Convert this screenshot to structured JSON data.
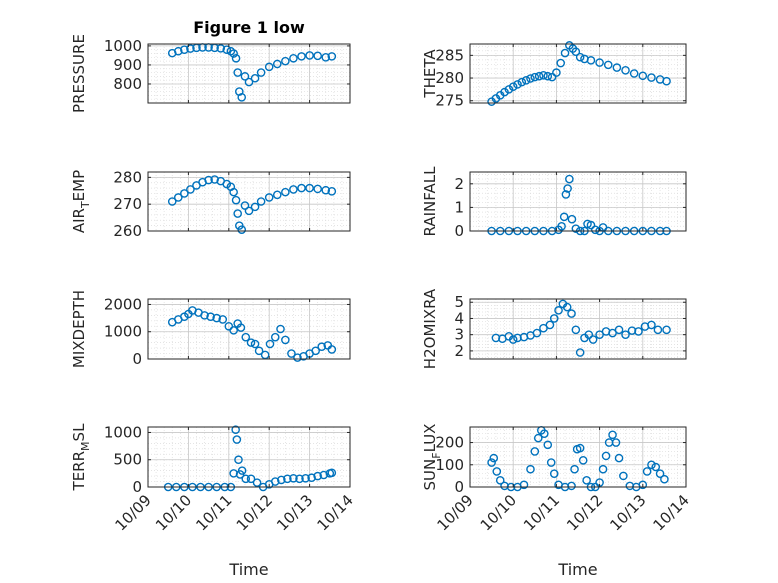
{
  "figure": {
    "title": "Figure 1 low",
    "xlabel": "Time"
  },
  "style": {
    "marker_color": "#0072BD",
    "axis_color": "#262626",
    "grid_color": "#dcdcdc"
  },
  "chart_data": [
    {
      "type": "scatter",
      "ylabel": "PRESSURE",
      "title": "Figure 1 low",
      "xlim": [
        0,
        5
      ],
      "ylim": [
        700,
        1010
      ],
      "yticks": [
        800,
        900,
        1000
      ],
      "xticklabels": [
        "10/09",
        "10/10",
        "10/11",
        "10/12",
        "10/13",
        "10/14"
      ],
      "grid": true,
      "x": [
        0.6,
        0.75,
        0.9,
        1.05,
        1.2,
        1.35,
        1.5,
        1.65,
        1.8,
        1.95,
        2.05,
        2.12,
        2.18,
        2.22,
        2.26,
        2.32,
        2.4,
        2.5,
        2.65,
        2.8,
        3.0,
        3.2,
        3.4,
        3.6,
        3.8,
        4.0,
        4.2,
        4.4,
        4.55
      ],
      "y": [
        962,
        972,
        980,
        986,
        990,
        992,
        992,
        990,
        987,
        980,
        972,
        960,
        935,
        860,
        760,
        730,
        840,
        810,
        830,
        860,
        890,
        905,
        920,
        935,
        945,
        950,
        948,
        940,
        945
      ]
    },
    {
      "type": "scatter",
      "ylabel": "THETA",
      "xlim": [
        0,
        5
      ],
      "ylim": [
        274.5,
        287.5
      ],
      "yticks": [
        275,
        280,
        285
      ],
      "xticklabels": [
        "10/09",
        "10/10",
        "10/11",
        "10/12",
        "10/13",
        "10/14"
      ],
      "grid": true,
      "x": [
        0.5,
        0.6,
        0.7,
        0.8,
        0.9,
        1.0,
        1.1,
        1.2,
        1.3,
        1.4,
        1.5,
        1.6,
        1.7,
        1.8,
        1.9,
        2.0,
        2.1,
        2.2,
        2.3,
        2.38,
        2.45,
        2.55,
        2.65,
        2.8,
        3.0,
        3.2,
        3.4,
        3.6,
        3.8,
        4.0,
        4.2,
        4.4,
        4.55
      ],
      "y": [
        274.8,
        275.5,
        276.2,
        276.9,
        277.5,
        278.1,
        278.6,
        279.1,
        279.5,
        279.9,
        280.2,
        280.4,
        280.6,
        280.4,
        280.2,
        281.2,
        283.3,
        285.5,
        287.2,
        286.5,
        285.8,
        284.6,
        284.2,
        283.9,
        283.4,
        282.9,
        282.3,
        281.7,
        281.0,
        280.5,
        280.1,
        279.7,
        279.3
      ]
    },
    {
      "type": "scatter",
      "ylabel": "AIR_TEMP",
      "xlim": [
        0,
        5
      ],
      "ylim": [
        260,
        282
      ],
      "yticks": [
        260,
        270,
        280
      ],
      "xticklabels": [
        "10/09",
        "10/10",
        "10/11",
        "10/12",
        "10/13",
        "10/14"
      ],
      "grid": true,
      "x": [
        0.6,
        0.75,
        0.9,
        1.05,
        1.2,
        1.35,
        1.5,
        1.65,
        1.8,
        1.95,
        2.05,
        2.12,
        2.18,
        2.22,
        2.26,
        2.32,
        2.4,
        2.5,
        2.65,
        2.8,
        3.0,
        3.2,
        3.4,
        3.6,
        3.8,
        4.0,
        4.2,
        4.4,
        4.55
      ],
      "y": [
        271,
        272.5,
        274,
        275.5,
        277,
        278.2,
        279,
        279.2,
        278.6,
        277.5,
        276.5,
        274.5,
        271.5,
        266.5,
        262,
        260.5,
        269.5,
        267.5,
        269,
        271,
        272.5,
        273.5,
        274.5,
        275.5,
        276,
        276,
        275.7,
        275.2,
        274.8
      ]
    },
    {
      "type": "scatter",
      "ylabel": "RAINFALL",
      "xlim": [
        0,
        5
      ],
      "ylim": [
        0,
        2.5
      ],
      "yticks": [
        0,
        1,
        2
      ],
      "xticklabels": [
        "10/09",
        "10/10",
        "10/11",
        "10/12",
        "10/13",
        "10/14"
      ],
      "grid": true,
      "x": [
        0.5,
        0.7,
        0.9,
        1.1,
        1.3,
        1.5,
        1.7,
        1.9,
        2.05,
        2.12,
        2.18,
        2.22,
        2.26,
        2.3,
        2.36,
        2.45,
        2.55,
        2.65,
        2.72,
        2.8,
        2.9,
        3.0,
        3.08,
        3.2,
        3.4,
        3.6,
        3.8,
        4.0,
        4.2,
        4.4,
        4.55
      ],
      "y": [
        0,
        0,
        0,
        0,
        0,
        0,
        0,
        0,
        0.05,
        0.2,
        0.6,
        1.55,
        1.8,
        2.2,
        0.5,
        0.1,
        0,
        0,
        0.3,
        0.25,
        0.05,
        0,
        0.15,
        0,
        0,
        0,
        0,
        0,
        0,
        0,
        0
      ]
    },
    {
      "type": "scatter",
      "ylabel": "MIXDEPTH",
      "xlim": [
        0,
        5
      ],
      "ylim": [
        0,
        2200
      ],
      "yticks": [
        0,
        1000,
        2000
      ],
      "xticklabels": [
        "10/09",
        "10/10",
        "10/11",
        "10/12",
        "10/13",
        "10/14"
      ],
      "grid": true,
      "x": [
        0.6,
        0.75,
        0.9,
        1.0,
        1.1,
        1.25,
        1.4,
        1.55,
        1.7,
        1.85,
        2.0,
        2.12,
        2.22,
        2.3,
        2.42,
        2.55,
        2.65,
        2.75,
        2.9,
        3.02,
        3.15,
        3.28,
        3.4,
        3.55,
        3.7,
        3.85,
        4.0,
        4.15,
        4.3,
        4.45,
        4.55
      ],
      "y": [
        1350,
        1450,
        1550,
        1650,
        1780,
        1700,
        1600,
        1550,
        1500,
        1450,
        1200,
        1050,
        1300,
        1150,
        800,
        600,
        550,
        300,
        150,
        550,
        800,
        1100,
        700,
        200,
        50,
        100,
        200,
        300,
        450,
        500,
        350
      ]
    },
    {
      "type": "scatter",
      "ylabel": "H2OMIXRA",
      "xlim": [
        0,
        5
      ],
      "ylim": [
        1.5,
        5.2
      ],
      "yticks": [
        2,
        3,
        4,
        5
      ],
      "xticklabels": [
        "10/09",
        "10/10",
        "10/11",
        "10/12",
        "10/13",
        "10/14"
      ],
      "grid": true,
      "x": [
        0.6,
        0.75,
        0.9,
        1.0,
        1.1,
        1.25,
        1.4,
        1.55,
        1.7,
        1.85,
        1.95,
        2.05,
        2.15,
        2.25,
        2.35,
        2.45,
        2.55,
        2.65,
        2.75,
        2.85,
        3.0,
        3.15,
        3.3,
        3.45,
        3.6,
        3.75,
        3.9,
        4.05,
        4.2,
        4.35,
        4.55
      ],
      "y": [
        2.8,
        2.75,
        2.9,
        2.7,
        2.8,
        2.85,
        2.95,
        3.1,
        3.4,
        3.6,
        4.0,
        4.5,
        4.9,
        4.7,
        4.3,
        3.3,
        1.9,
        2.8,
        3.0,
        2.7,
        3.0,
        3.2,
        3.1,
        3.3,
        3.0,
        3.25,
        3.2,
        3.5,
        3.6,
        3.3,
        3.3
      ]
    },
    {
      "type": "scatter",
      "ylabel": "TERR_MSL",
      "xlim": [
        0,
        5
      ],
      "ylim": [
        0,
        1100
      ],
      "yticks": [
        0,
        500,
        1000
      ],
      "xticklabels": [
        "10/09",
        "10/10",
        "10/11",
        "10/12",
        "10/13",
        "10/14"
      ],
      "grid": true,
      "x": [
        0.5,
        0.7,
        0.9,
        1.1,
        1.3,
        1.5,
        1.7,
        1.9,
        2.05,
        2.12,
        2.17,
        2.2,
        2.24,
        2.28,
        2.33,
        2.42,
        2.55,
        2.7,
        2.85,
        3.0,
        3.15,
        3.3,
        3.45,
        3.6,
        3.75,
        3.9,
        4.05,
        4.2,
        4.35,
        4.5,
        4.55
      ],
      "y": [
        0,
        0,
        0,
        0,
        0,
        0,
        0,
        0,
        0,
        250,
        1050,
        870,
        500,
        230,
        300,
        150,
        150,
        80,
        0,
        50,
        100,
        130,
        150,
        160,
        150,
        160,
        170,
        200,
        220,
        250,
        260
      ]
    },
    {
      "type": "scatter",
      "ylabel": "SUN_FLUX",
      "xlim": [
        0,
        5
      ],
      "ylim": [
        0,
        270
      ],
      "yticks": [
        0,
        100,
        200
      ],
      "xticklabels": [
        "10/09",
        "10/10",
        "10/11",
        "10/12",
        "10/13",
        "10/14"
      ],
      "grid": true,
      "x": [
        0.5,
        0.55,
        0.62,
        0.7,
        0.8,
        0.95,
        1.1,
        1.25,
        1.4,
        1.5,
        1.58,
        1.65,
        1.72,
        1.8,
        1.88,
        1.95,
        2.05,
        2.2,
        2.35,
        2.42,
        2.48,
        2.55,
        2.62,
        2.7,
        2.8,
        2.9,
        3.0,
        3.08,
        3.15,
        3.22,
        3.3,
        3.38,
        3.45,
        3.55,
        3.7,
        3.85,
        4.0,
        4.1,
        4.2,
        4.3,
        4.4,
        4.5
      ],
      "y": [
        110,
        130,
        70,
        30,
        5,
        0,
        0,
        10,
        80,
        160,
        220,
        255,
        240,
        190,
        110,
        60,
        10,
        0,
        5,
        80,
        170,
        175,
        120,
        30,
        0,
        0,
        20,
        80,
        140,
        200,
        235,
        200,
        130,
        50,
        5,
        0,
        10,
        70,
        100,
        90,
        60,
        35
      ]
    }
  ]
}
